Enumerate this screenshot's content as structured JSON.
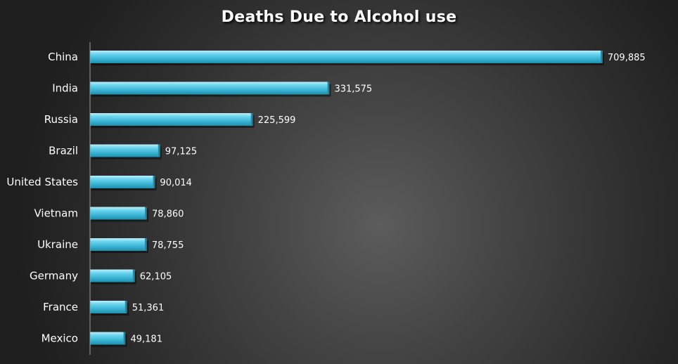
{
  "chart_data": {
    "type": "bar",
    "orientation": "horizontal",
    "title": "Deaths Due to Alcohol use",
    "categories": [
      "China",
      "India",
      "Russia",
      "Brazil",
      "United States",
      "Vietnam",
      "Ukraine",
      "Germany",
      "France",
      "Mexico"
    ],
    "values": [
      709885,
      331575,
      225599,
      97125,
      90014,
      78860,
      78755,
      62105,
      51361,
      49181
    ],
    "value_labels": [
      "709,885",
      "331,575",
      "225,599",
      "97,125",
      "90,014",
      "78,860",
      "78,755",
      "62,105",
      "51,361",
      "49,181"
    ],
    "xlim": [
      0,
      710000
    ],
    "grid": false,
    "legend": "none",
    "colors": {
      "bar_top": "#bff0fb",
      "bar_mid": "#4fc8e4",
      "bar_bottom": "#1c8fae",
      "text": "#ffffff",
      "axis": "#9a9a9a"
    }
  }
}
